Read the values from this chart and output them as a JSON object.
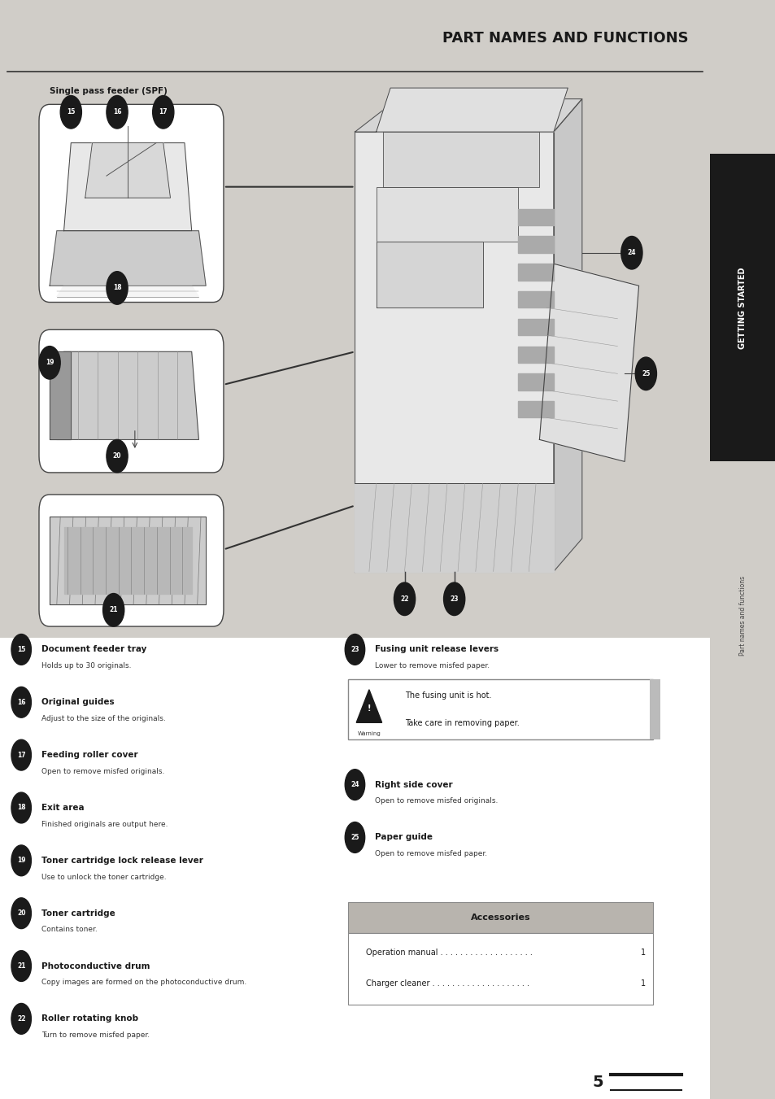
{
  "title": "PART NAMES AND FUNCTIONS",
  "bg_color": "#d0cdc8",
  "page_bg": "#ffffff",
  "title_color": "#1a1a1a",
  "sidebar_text": "GETTING STARTED",
  "sidebar_sub": "Part names and functions",
  "page_number": "5",
  "spf_label": "Single pass feeder (SPF)",
  "left_items": [
    {
      "num": "15",
      "name": "Document feeder tray",
      "desc": "Holds up to 30 originals."
    },
    {
      "num": "16",
      "name": "Original guides",
      "desc": "Adjust to the size of the originals."
    },
    {
      "num": "17",
      "name": "Feeding roller cover",
      "desc": "Open to remove misfed originals."
    },
    {
      "num": "18",
      "name": "Exit area",
      "desc": "Finished originals are output here."
    },
    {
      "num": "19",
      "name": "Toner cartridge lock release lever",
      "desc": "Use to unlock the toner cartridge."
    },
    {
      "num": "20",
      "name": "Toner cartridge",
      "desc": "Contains toner."
    },
    {
      "num": "21",
      "name": "Photoconductive drum",
      "desc": "Copy images are formed on the photoconductive drum."
    },
    {
      "num": "22",
      "name": "Roller rotating knob",
      "desc": "Turn to remove misfed paper."
    }
  ],
  "right_items": [
    {
      "num": "23",
      "name": "Fusing unit release levers",
      "desc": "Lower to remove misfed paper."
    },
    {
      "num": "24",
      "name": "Right side cover",
      "desc": "Open to remove misfed originals."
    },
    {
      "num": "25",
      "name": "Paper guide",
      "desc": "Open to remove misfed paper."
    }
  ],
  "warning_text1": "The fusing unit is hot.",
  "warning_text2": "Take care in removing paper.",
  "accessories_title": "Accessories",
  "accessories_items": [
    {
      "name": "Operation manual",
      "dots": " . . . . . . . . . . . . . . . . . . .",
      "qty": "1"
    },
    {
      "name": "Charger cleaner",
      "dots": " . . . . . . . . . . . . . . . . . . . .",
      "qty": "1"
    }
  ]
}
